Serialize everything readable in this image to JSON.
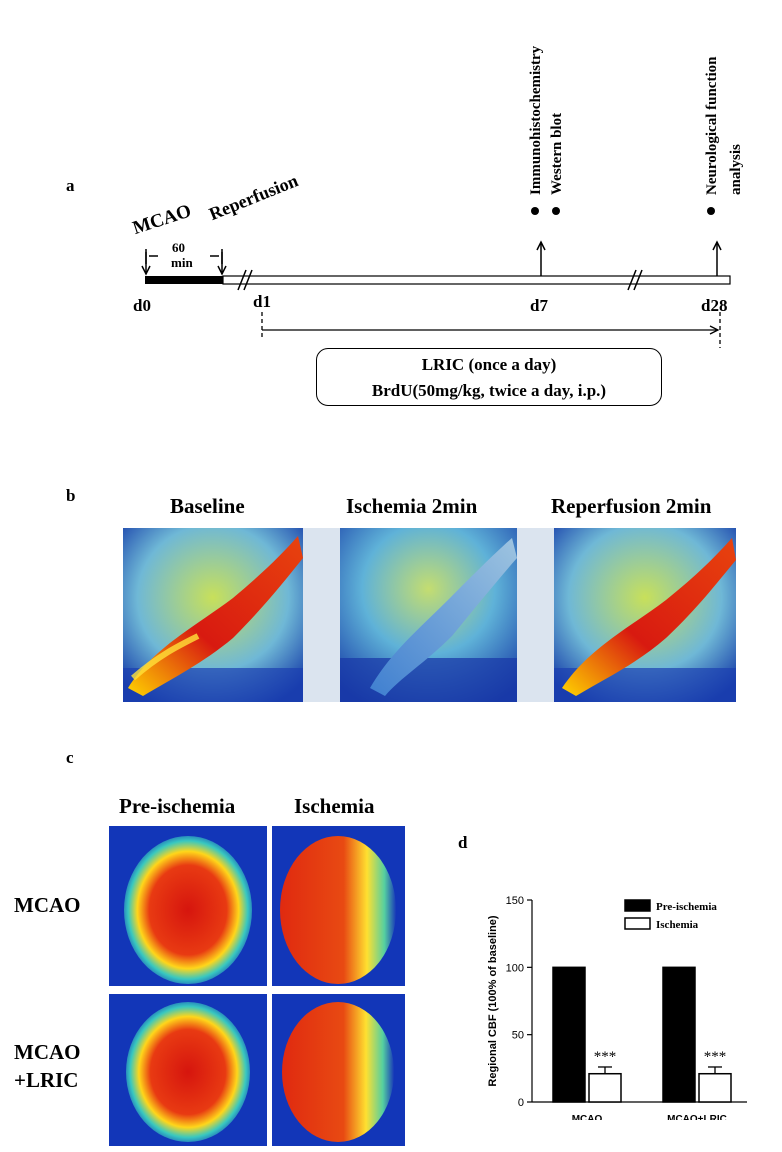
{
  "panels": {
    "a": "a",
    "b": "b",
    "c": "c",
    "d": "d"
  },
  "timeline": {
    "mcao": "MCAO",
    "reperfusion": "Reperfusion",
    "duration_value": "60",
    "duration_unit": "min",
    "days": [
      "d0",
      "d1",
      "d7",
      "d28"
    ],
    "d7_events": [
      "Immunohistochemistry",
      "Western blot"
    ],
    "d28_events": [
      "Neurological function",
      "analysis"
    ],
    "treatment_line1": "LRIC (once a day)",
    "treatment_line2": "BrdU(50mg/kg, twice a day, i.p.)"
  },
  "panel_b": {
    "titles": [
      "Baseline",
      "Ischemia 2min",
      "Reperfusion 2min"
    ]
  },
  "panel_c": {
    "col_titles": [
      "Pre-ischemia",
      "Ischemia"
    ],
    "row_label_1": "MCAO",
    "row_label_2a": "MCAO",
    "row_label_2b": "+LRIC"
  },
  "chart_data": {
    "type": "bar",
    "categories": [
      "MCAO",
      "MCAO+LRIC"
    ],
    "series": [
      {
        "name": "Pre-ischemia",
        "values": [
          100,
          100
        ],
        "color": "#000000"
      },
      {
        "name": "Ischemia",
        "values": [
          21,
          21
        ],
        "errors": [
          5,
          5
        ],
        "color": "#ffffff"
      }
    ],
    "significance": [
      "***",
      "***"
    ],
    "ylabel": "Regional CBF (100% of baseline)",
    "ylim": [
      0,
      150
    ],
    "yticks": [
      0,
      50,
      100,
      150
    ],
    "legend": "top-right"
  }
}
